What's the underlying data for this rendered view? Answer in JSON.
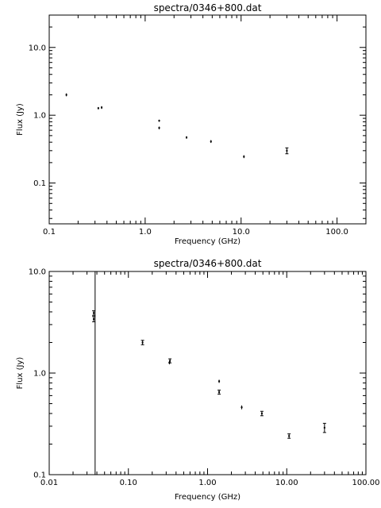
{
  "chart_data": [
    {
      "type": "scatter",
      "title": "spectra/0346+800.dat",
      "xlabel": "Frequency (GHz)",
      "ylabel": "Flux (Jy)",
      "xscale": "log",
      "yscale": "log",
      "xlim": [
        0.1,
        200
      ],
      "ylim": [
        0.025,
        30
      ],
      "xticks": [
        {
          "value": 0.1,
          "label": "0.1"
        },
        {
          "value": 1,
          "label": "1.0"
        },
        {
          "value": 10,
          "label": "10.0"
        },
        {
          "value": 100,
          "label": "100.0"
        }
      ],
      "yticks": [
        {
          "value": 0.1,
          "label": "0.1"
        },
        {
          "value": 1,
          "label": "1.0"
        },
        {
          "value": 10,
          "label": "10.0"
        }
      ],
      "vlines": [],
      "points": [
        {
          "x": 0.151,
          "y": 2.0,
          "err": 0.1
        },
        {
          "x": 0.325,
          "y": 1.27,
          "err": 0.05
        },
        {
          "x": 0.352,
          "y": 1.3,
          "err": 0.06
        },
        {
          "x": 1.4,
          "y": 0.83,
          "err": 0.03
        },
        {
          "x": 1.4,
          "y": 0.65,
          "err": 0.03
        },
        {
          "x": 2.7,
          "y": 0.47,
          "err": 0.02
        },
        {
          "x": 4.85,
          "y": 0.41,
          "err": 0.02
        },
        {
          "x": 10.7,
          "y": 0.245,
          "err": 0.012
        },
        {
          "x": 30.0,
          "y": 0.3,
          "err": 0.03
        }
      ]
    },
    {
      "type": "scatter",
      "title": "spectra/0346+800.dat",
      "xlabel": "Frequency (GHz)",
      "ylabel": "Flux (Jy)",
      "xscale": "log",
      "yscale": "log",
      "xlim": [
        0.01,
        100
      ],
      "ylim": [
        0.1,
        10
      ],
      "xticks": [
        {
          "value": 0.01,
          "label": "0.01"
        },
        {
          "value": 0.1,
          "label": "0.10"
        },
        {
          "value": 1,
          "label": "1.00"
        },
        {
          "value": 10,
          "label": "10.00"
        },
        {
          "value": 100,
          "label": "100.00"
        }
      ],
      "yticks": [
        {
          "value": 0.1,
          "label": "0.1"
        },
        {
          "value": 1,
          "label": "1.0"
        },
        {
          "value": 10,
          "label": "10.0"
        }
      ],
      "vlines": [
        0.038
      ],
      "points": [
        {
          "x": 0.0365,
          "y": 3.9,
          "err": 0.2
        },
        {
          "x": 0.0365,
          "y": 3.4,
          "err": 0.2
        },
        {
          "x": 0.151,
          "y": 2.0,
          "err": 0.1
        },
        {
          "x": 0.33,
          "y": 1.27,
          "err": 0.05
        },
        {
          "x": 0.335,
          "y": 1.32,
          "err": 0.06
        },
        {
          "x": 1.4,
          "y": 0.83,
          "err": 0.03
        },
        {
          "x": 1.4,
          "y": 0.65,
          "err": 0.03
        },
        {
          "x": 2.7,
          "y": 0.46,
          "err": 0.02
        },
        {
          "x": 4.85,
          "y": 0.4,
          "err": 0.02
        },
        {
          "x": 10.7,
          "y": 0.24,
          "err": 0.012
        },
        {
          "x": 30.0,
          "y": 0.29,
          "err": 0.03
        }
      ]
    }
  ]
}
